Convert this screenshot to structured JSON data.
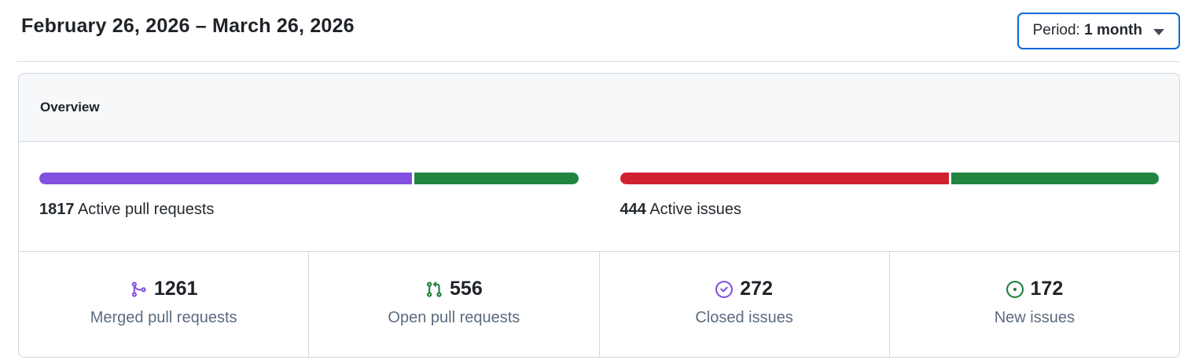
{
  "header": {
    "date_range": "February 26, 2026 – March 26, 2026",
    "period_button": {
      "label_prefix": "Period:",
      "value": "1 month"
    }
  },
  "overview": {
    "title": "Overview",
    "meters": [
      {
        "count": "1817",
        "label": "Active pull requests",
        "segments": [
          {
            "name": "merged-pull-requests",
            "color": "#8250df",
            "percent": 69.4
          },
          {
            "name": "open-pull-requests",
            "color": "#218540",
            "percent": 30.6
          }
        ]
      },
      {
        "count": "444",
        "label": "Active issues",
        "segments": [
          {
            "name": "closed-issues",
            "color": "#cf222e",
            "percent": 61.3
          },
          {
            "name": "new-issues",
            "color": "#218540",
            "percent": 38.7
          }
        ]
      }
    ],
    "stats": [
      {
        "icon": "git-merge-icon",
        "color": "#8250df",
        "count": "1261",
        "label": "Merged pull requests"
      },
      {
        "icon": "git-pull-request-icon",
        "color": "#1a7f37",
        "count": "556",
        "label": "Open pull requests"
      },
      {
        "icon": "issue-closed-icon",
        "color": "#8250df",
        "count": "272",
        "label": "Closed issues"
      },
      {
        "icon": "issue-opened-icon",
        "color": "#1a7f37",
        "count": "172",
        "label": "New issues"
      }
    ]
  }
}
